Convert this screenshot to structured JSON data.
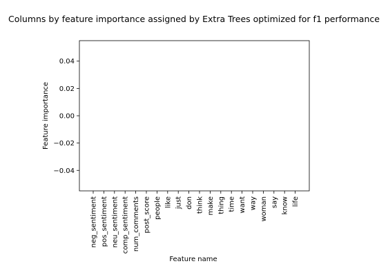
{
  "chart_data": {
    "type": "bar",
    "title": "Columns by feature importance assigned by Extra Trees optimized for f1 performance",
    "xlabel": "Feature name",
    "ylabel": "Feature importance",
    "categories": [
      "neg_sentiment",
      "pos_sentiment",
      "neu_sentiment",
      "comp_sentiment",
      "num_comments",
      "post_score",
      "people",
      "like",
      "just",
      "don",
      "think",
      "make",
      "thing",
      "time",
      "want",
      "way",
      "woman",
      "say",
      "know",
      "life"
    ],
    "values": [
      0,
      0,
      0,
      0,
      0,
      0,
      0,
      0,
      0,
      0,
      0,
      0,
      0,
      0,
      0,
      0,
      0,
      0,
      0,
      0
    ],
    "ylim": [
      -0.055,
      0.055
    ],
    "yticks": [
      0.04,
      0.02,
      0.0,
      -0.02,
      -0.04
    ],
    "ytick_labels": [
      "0.04",
      "0.02",
      "0.00",
      "−0.02",
      "−0.04"
    ],
    "grid": false,
    "legend": "none",
    "colors": {
      "axis": "#000000",
      "bar": "#1f77b4",
      "background": "#ffffff"
    }
  }
}
